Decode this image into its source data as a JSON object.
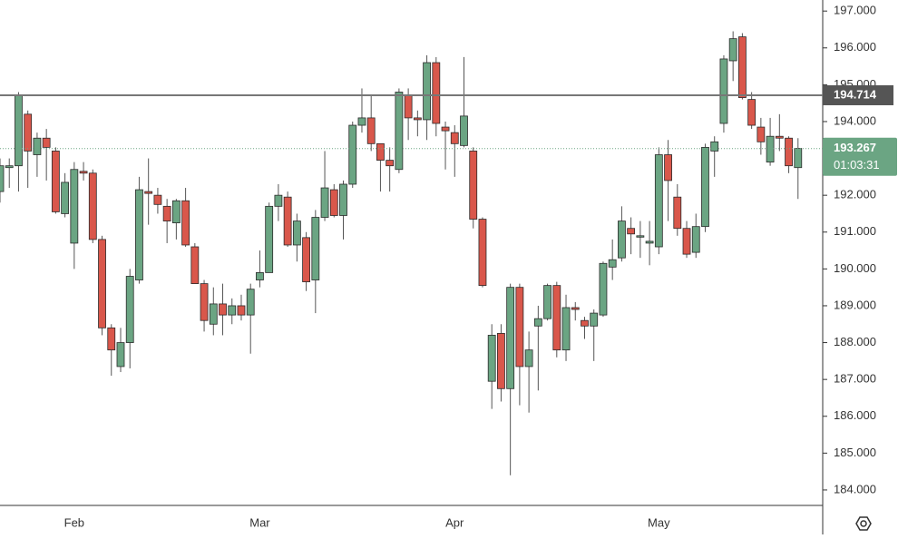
{
  "chart_data": {
    "type": "candlestick",
    "categories": [
      null,
      null,
      null,
      null,
      null,
      null,
      null,
      null,
      "Feb",
      null,
      null,
      null,
      null,
      null,
      null,
      null,
      null,
      null,
      null,
      null,
      null,
      null,
      null,
      null,
      null,
      null,
      null,
      null,
      "Mar",
      null,
      null,
      null,
      null,
      null,
      null,
      null,
      null,
      null,
      null,
      null,
      null,
      null,
      null,
      null,
      null,
      null,
      null,
      null,
      null,
      "Apr",
      null,
      null,
      null,
      null,
      null,
      null,
      null,
      null,
      null,
      null,
      null,
      null,
      null,
      null,
      null,
      null,
      null,
      null,
      null,
      null,
      null,
      "May",
      null,
      null,
      null,
      null,
      null,
      null,
      null,
      null,
      null,
      null,
      null,
      null,
      null,
      null,
      null
    ],
    "open": [
      192.1,
      192.75,
      192.8,
      194.2,
      193.1,
      193.55,
      193.2,
      191.5,
      190.7,
      192.65,
      192.6,
      190.8,
      188.4,
      187.35,
      188.0,
      189.7,
      192.1,
      192.0,
      191.7,
      191.25,
      191.85,
      190.6,
      189.6,
      188.5,
      189.05,
      188.75,
      189.0,
      188.75,
      189.7,
      189.9,
      191.7,
      191.95,
      190.65,
      190.85,
      189.7,
      191.4,
      192.15,
      191.45,
      192.3,
      193.9,
      194.1,
      193.4,
      192.95,
      192.7,
      194.7,
      194.1,
      194.05,
      195.6,
      193.85,
      193.7,
      193.35,
      193.2,
      191.35,
      186.95,
      188.25,
      186.75,
      189.5,
      187.35,
      188.45,
      188.65,
      189.55,
      187.8,
      188.95,
      188.6,
      188.45,
      188.75,
      190.05,
      190.3,
      191.1,
      190.9,
      190.7,
      190.6,
      193.1,
      191.95,
      191.1,
      190.45,
      191.15,
      193.2,
      193.95,
      195.65,
      196.3,
      194.6,
      193.85,
      192.9,
      193.6,
      193.55,
      192.75
    ],
    "high": [
      193.0,
      193.0,
      194.8,
      194.3,
      193.7,
      193.8,
      193.3,
      192.6,
      192.9,
      192.9,
      192.7,
      190.9,
      188.5,
      188.4,
      190.0,
      192.5,
      193.0,
      192.2,
      191.9,
      191.9,
      192.2,
      190.7,
      189.7,
      189.5,
      189.6,
      189.2,
      189.3,
      189.6,
      190.5,
      191.8,
      192.3,
      192.1,
      191.5,
      191.0,
      191.6,
      193.2,
      192.3,
      192.4,
      194.0,
      194.9,
      194.7,
      193.4,
      193.3,
      194.9,
      194.9,
      194.3,
      195.8,
      195.75,
      194.0,
      193.9,
      195.75,
      193.3,
      191.4,
      188.5,
      188.5,
      189.6,
      189.6,
      188.3,
      189.0,
      189.6,
      189.65,
      189.3,
      189.1,
      188.7,
      188.9,
      190.2,
      190.8,
      191.7,
      191.4,
      191.3,
      191.3,
      193.3,
      193.5,
      192.3,
      191.3,
      191.5,
      193.4,
      193.6,
      195.8,
      196.45,
      196.4,
      194.8,
      194.1,
      194.1,
      194.2,
      193.6,
      193.55
    ],
    "low": [
      191.8,
      192.2,
      192.1,
      192.2,
      192.5,
      192.4,
      191.5,
      191.4,
      190.0,
      192.4,
      190.7,
      188.2,
      187.1,
      187.2,
      187.3,
      189.6,
      191.2,
      191.5,
      190.7,
      190.8,
      190.6,
      189.6,
      188.3,
      188.2,
      188.2,
      188.5,
      188.6,
      187.7,
      189.5,
      189.9,
      191.3,
      190.6,
      190.2,
      189.4,
      188.8,
      191.3,
      191.4,
      190.8,
      192.2,
      193.7,
      193.2,
      192.1,
      192.1,
      192.6,
      193.5,
      193.6,
      193.5,
      193.6,
      192.7,
      192.5,
      193.3,
      191.1,
      189.5,
      186.2,
      186.4,
      184.4,
      186.3,
      186.1,
      186.7,
      188.6,
      187.6,
      187.5,
      188.6,
      188.1,
      187.5,
      188.7,
      189.7,
      190.2,
      190.4,
      190.3,
      190.1,
      190.4,
      191.3,
      190.9,
      190.3,
      190.3,
      191.0,
      192.5,
      193.7,
      195.1,
      194.6,
      193.8,
      193.1,
      192.8,
      193.2,
      192.6,
      191.9
    ],
    "close": [
      192.8,
      192.8,
      194.7,
      193.2,
      193.55,
      193.3,
      191.55,
      192.35,
      192.7,
      192.6,
      190.8,
      188.4,
      187.8,
      188.0,
      189.8,
      192.15,
      192.05,
      191.75,
      191.3,
      191.85,
      190.65,
      189.6,
      188.6,
      189.05,
      188.75,
      189.0,
      188.75,
      189.45,
      189.9,
      191.7,
      192.0,
      190.65,
      191.3,
      189.65,
      191.4,
      192.2,
      191.45,
      192.3,
      193.9,
      194.1,
      193.4,
      192.95,
      192.8,
      194.8,
      194.1,
      194.05,
      195.6,
      193.95,
      193.75,
      193.4,
      194.15,
      191.35,
      189.55,
      188.2,
      186.75,
      189.5,
      187.35,
      187.8,
      188.65,
      189.55,
      187.8,
      188.95,
      188.9,
      188.45,
      188.8,
      190.15,
      190.25,
      191.3,
      190.95,
      190.9,
      190.75,
      193.1,
      192.4,
      191.1,
      190.4,
      191.15,
      193.3,
      193.45,
      195.7,
      196.25,
      194.65,
      193.9,
      193.45,
      193.6,
      193.55,
      192.8,
      193.27
    ],
    "up_color": "#6ba583",
    "down_color": "#d9574b",
    "ylim": [
      183.58,
      197.3
    ],
    "yticks": [
      {
        "value": 184,
        "label": "184.000"
      },
      {
        "value": 185,
        "label": "185.000"
      },
      {
        "value": 186,
        "label": "186.000"
      },
      {
        "value": 187,
        "label": "187.000"
      },
      {
        "value": 188,
        "label": "188.000"
      },
      {
        "value": 189,
        "label": "189.000"
      },
      {
        "value": 190,
        "label": "190.000"
      },
      {
        "value": 191,
        "label": "191.000"
      },
      {
        "value": 192,
        "label": "192.000"
      },
      {
        "value": 193,
        "label": "193.000"
      },
      {
        "value": 194,
        "label": "194.000"
      },
      {
        "value": 195,
        "label": "195.000"
      },
      {
        "value": 196,
        "label": "196.000"
      },
      {
        "value": 197,
        "label": "197.000"
      }
    ],
    "horizontal_line": {
      "value": 194.714
    },
    "last_price": {
      "value": 193.267,
      "countdown": "01:03:31"
    }
  }
}
